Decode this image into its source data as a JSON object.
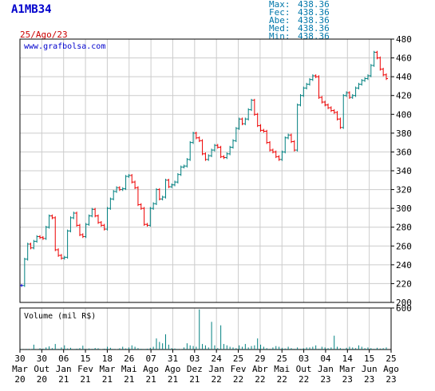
{
  "header": {
    "ticker": "A1MB34",
    "date": "25/Ago/23",
    "stats": [
      {
        "label": "Max:",
        "value": "438.36"
      },
      {
        "label": "Fec:",
        "value": "438.36"
      },
      {
        "label": "Abe:",
        "value": "438.36"
      },
      {
        "label": "Med:",
        "value": "438.36"
      },
      {
        "label": "Min:",
        "value": "438.36"
      }
    ]
  },
  "colors": {
    "up": "#008080",
    "down": "#ee0000",
    "flat": "#0000cc",
    "volume": "#008080",
    "grid": "#cccccc",
    "axis": "#000000"
  },
  "chart_data": [
    {
      "type": "candlestick",
      "watermark": "www.grafbolsa.com",
      "ylim": [
        200,
        480
      ],
      "yticks": [
        200,
        220,
        240,
        260,
        280,
        300,
        320,
        340,
        360,
        380,
        400,
        420,
        440,
        460,
        480
      ],
      "grid": true,
      "close": [
        218,
        246,
        262,
        258,
        265,
        270,
        269,
        268,
        280,
        292,
        290,
        256,
        250,
        247,
        248,
        276,
        290,
        295,
        282,
        272,
        270,
        283,
        292,
        299,
        292,
        285,
        282,
        278,
        300,
        310,
        318,
        322,
        320,
        321,
        334,
        335,
        328,
        322,
        304,
        300,
        283,
        282,
        300,
        305,
        320,
        310,
        312,
        330,
        323,
        325,
        328,
        336,
        344,
        345,
        352,
        370,
        380,
        375,
        372,
        358,
        352,
        356,
        362,
        367,
        365,
        355,
        354,
        358,
        365,
        372,
        385,
        395,
        390,
        395,
        405,
        415,
        400,
        388,
        383,
        382,
        370,
        362,
        360,
        355,
        352,
        360,
        375,
        378,
        371,
        362,
        410,
        420,
        428,
        432,
        437,
        441,
        440,
        418,
        413,
        410,
        407,
        404,
        402,
        395,
        386,
        420,
        423,
        418,
        420,
        428,
        432,
        436,
        438,
        441,
        452,
        466,
        460,
        448,
        442,
        438
      ]
    },
    {
      "type": "bar",
      "title": "Volume (mil R$)",
      "ylim": [
        0,
        600
      ],
      "yticks": [
        600
      ],
      "values": [
        5,
        2,
        8,
        6,
        70,
        3,
        18,
        12,
        30,
        45,
        20,
        80,
        10,
        30,
        60,
        15,
        25,
        8,
        12,
        20,
        55,
        8,
        15,
        10,
        22,
        18,
        5,
        12,
        40,
        25,
        8,
        5,
        18,
        40,
        15,
        30,
        60,
        40,
        20,
        10,
        8,
        12,
        25,
        40,
        160,
        110,
        90,
        220,
        70,
        20,
        15,
        8,
        5,
        30,
        90,
        60,
        50,
        40,
        580,
        80,
        60,
        30,
        400,
        60,
        20,
        350,
        80,
        60,
        40,
        30,
        20,
        60,
        40,
        80,
        30,
        50,
        60,
        160,
        70,
        40,
        20,
        10,
        30,
        50,
        40,
        25,
        15,
        40,
        20,
        10,
        30,
        10,
        20,
        30,
        30,
        40,
        60,
        10,
        40,
        30,
        20,
        30,
        200,
        40,
        20,
        10,
        25,
        40,
        30,
        20,
        60,
        40,
        20,
        30,
        20,
        10,
        25,
        15,
        20,
        30
      ],
      "xtick_labels": [
        {
          "day": "30",
          "month": "Mar",
          "year": "20"
        },
        {
          "day": "30",
          "month": "Out",
          "year": "20"
        },
        {
          "day": "06",
          "month": "Jan",
          "year": "21"
        },
        {
          "day": "15",
          "month": "Fev",
          "year": "21"
        },
        {
          "day": "18",
          "month": "Mar",
          "year": "21"
        },
        {
          "day": "26",
          "month": "Mai",
          "year": "21"
        },
        {
          "day": "07",
          "month": "Ago",
          "year": "21"
        },
        {
          "day": "31",
          "month": "Ago",
          "year": "21"
        },
        {
          "day": "03",
          "month": "Dez",
          "year": "21"
        },
        {
          "day": "24",
          "month": "Jan",
          "year": "22"
        },
        {
          "day": "25",
          "month": "Fev",
          "year": "22"
        },
        {
          "day": "29",
          "month": "Abr",
          "year": "22"
        },
        {
          "day": "25",
          "month": "Mai",
          "year": "22"
        },
        {
          "day": "03",
          "month": "Out",
          "year": "22"
        },
        {
          "day": "04",
          "month": "Jan",
          "year": "23"
        },
        {
          "day": "14",
          "month": "Mar",
          "year": "23"
        },
        {
          "day": "15",
          "month": "Jun",
          "year": "23"
        },
        {
          "day": "25",
          "month": "Ago",
          "year": "23"
        }
      ]
    }
  ]
}
